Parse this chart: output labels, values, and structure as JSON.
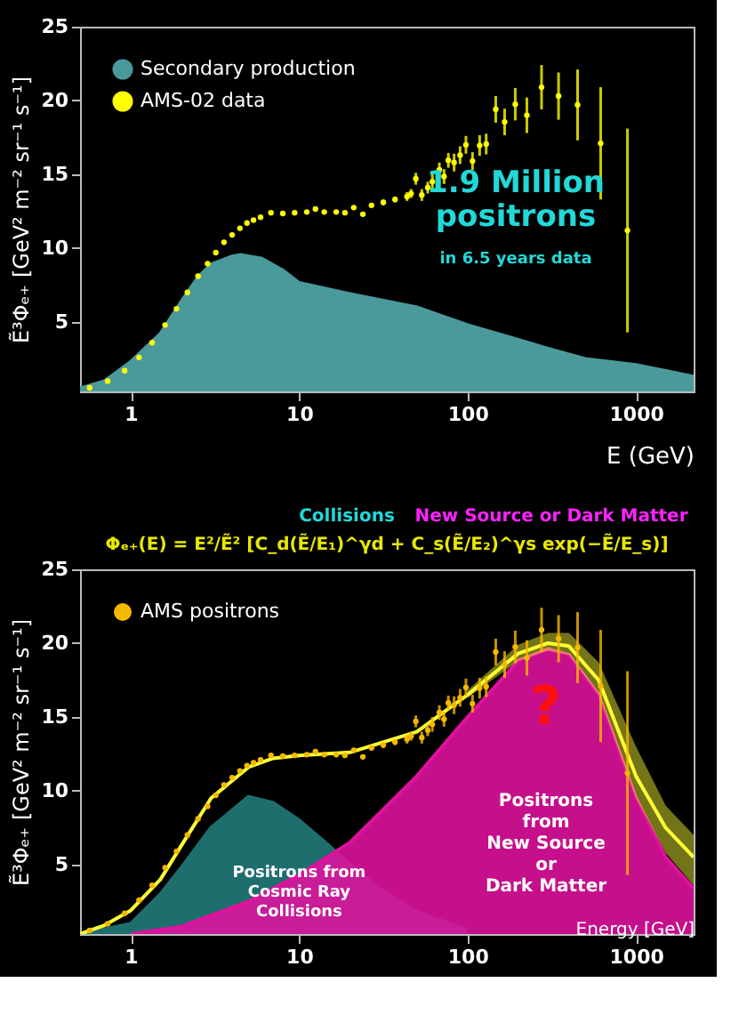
{
  "chart_data": [
    {
      "type": "scatter",
      "xlabel": "E (GeV)",
      "ylabel": "Ẽ³Φₑ₊ [GeV² m⁻² sr⁻¹ s⁻¹]",
      "log": "x",
      "xlim": [
        0.5,
        2200
      ],
      "xticks": [
        1,
        10,
        100,
        1000
      ],
      "ylim": [
        0.3,
        25
      ],
      "yticks": [
        5,
        10,
        15,
        20,
        25
      ],
      "grid": false,
      "legend": "top left",
      "annotations": [
        "1.9 Million\npositrons",
        "in 6.5 years data"
      ],
      "series": [
        {
          "name": "Secondary production",
          "type": "area",
          "color": "#4a9a9c",
          "x": [
            0.5,
            0.7,
            1,
            1.5,
            2,
            2.5,
            3,
            4,
            4.5,
            6,
            8,
            10,
            20,
            50,
            100,
            200,
            300,
            500,
            1000,
            2200
          ],
          "values": [
            0.5,
            1.0,
            2.3,
            4.2,
            6.4,
            8.0,
            8.9,
            9.45,
            9.55,
            9.3,
            8.5,
            7.65,
            6.9,
            6.0,
            4.8,
            3.8,
            3.2,
            2.5,
            2.1,
            1.3
          ]
        },
        {
          "name": "AMS-02 data",
          "color": "#ffff00",
          "x": [
            0.57,
            0.73,
            0.92,
            1.12,
            1.34,
            1.6,
            1.87,
            2.17,
            2.51,
            2.86,
            3.2,
            3.58,
            4.0,
            4.45,
            4.9,
            5.36,
            5.9,
            6.8,
            8.0,
            9.4,
            11.1,
            12.5,
            14.1,
            16.6,
            18.7,
            21.1,
            23.9,
            26.9,
            31.6,
            37.1,
            43.7,
            46.2,
            49.3,
            53.5,
            58,
            61.8,
            68,
            72.5,
            76.9,
            83.2,
            90.3,
            97.8,
            107,
            118,
            129,
            147,
            166,
            192,
            225,
            275,
            347,
            450,
            617,
            890
          ],
          "values": [
            0.54,
            1.0,
            1.7,
            2.6,
            3.6,
            4.8,
            5.9,
            7.0,
            8.1,
            8.95,
            9.7,
            10.4,
            10.9,
            11.35,
            11.7,
            11.9,
            12.1,
            12.4,
            12.35,
            12.4,
            12.45,
            12.65,
            12.45,
            12.45,
            12.4,
            12.75,
            12.3,
            12.9,
            13.1,
            13.3,
            13.5,
            13.7,
            14.7,
            13.6,
            14.1,
            14.5,
            15.3,
            14.85,
            15.95,
            15.8,
            16.3,
            17.0,
            15.9,
            16.95,
            17.05,
            19.4,
            18.55,
            19.75,
            19.0,
            20.9,
            20.3,
            19.7,
            17.1,
            11.2
          ],
          "errors": [
            null,
            null,
            null,
            null,
            null,
            null,
            null,
            null,
            null,
            null,
            null,
            null,
            null,
            null,
            null,
            null,
            null,
            null,
            null,
            null,
            null,
            null,
            null,
            null,
            null,
            null,
            null,
            null,
            0.2,
            0.2,
            0.3,
            0.3,
            0.4,
            0.4,
            0.4,
            0.5,
            0.5,
            0.5,
            0.5,
            0.6,
            0.6,
            0.6,
            0.6,
            0.7,
            0.7,
            0.9,
            0.9,
            1.1,
            1.2,
            1.5,
            1.6,
            2.4,
            3.8,
            6.9
          ]
        }
      ]
    },
    {
      "type": "scatter",
      "title": "Φₑ₊(E) = E²/Ẽ² [C_d(Ẽ/E₁)^γd + C_s(Ẽ/E₂)^γs exp(−Ẽ/E_s)]",
      "xlabel": "Energy [GeV]",
      "ylabel": "Ẽ³Φₑ₊ [GeV² m⁻² sr⁻¹ s⁻¹]",
      "log": "x",
      "xlim": [
        0.5,
        2200
      ],
      "xticks": [
        1,
        10,
        100,
        1000
      ],
      "ylim": [
        0.3,
        25
      ],
      "yticks": [
        5,
        10,
        15,
        20,
        25
      ],
      "grid": false,
      "legend": "top left",
      "annotations": [
        "Collisions",
        "New Source or Dark Matter",
        {
          "text": "Positrons from\nCosmic Ray\nCollisions",
          "x": 10,
          "y": 4.5
        },
        "?",
        "Positrons\nfrom\nNew Source\nor\nDark Matter"
      ],
      "series": [
        {
          "type": "area",
          "color": "#1f6e6e",
          "x": [
            0.5,
            1,
            1.5,
            2,
            3,
            5,
            7,
            10,
            15,
            20,
            30,
            50,
            100
          ],
          "values": [
            0.3,
            1.0,
            3.0,
            4.8,
            7.5,
            9.6,
            9.2,
            8.0,
            6.3,
            5.0,
            3.4,
            1.8,
            0.6
          ]
        },
        {
          "type": "area",
          "color": "#e0119e",
          "x": [
            1,
            2,
            5,
            10,
            20,
            50,
            100,
            200,
            300,
            400,
            600,
            1000,
            1500,
            2200
          ],
          "values": [
            0.3,
            0.8,
            2.5,
            4.3,
            6.5,
            11.0,
            15.0,
            18.8,
            19.6,
            19.2,
            16.5,
            9.5,
            5.5,
            3.4
          ]
        },
        {
          "type": "line",
          "color": "#ffff33",
          "x": [
            0.5,
            0.7,
            1,
            1.5,
            2,
            3,
            5,
            7,
            10,
            20,
            50,
            100,
            200,
            300,
            400,
            600,
            1000,
            1500,
            2200
          ],
          "values": [
            0.3,
            0.9,
            1.9,
            4.0,
            6.3,
            9.5,
            11.6,
            12.2,
            12.4,
            12.6,
            14.0,
            16.5,
            19.3,
            20.0,
            19.8,
            17.5,
            11.0,
            7.5,
            5.5
          ],
          "lower": [
            null,
            null,
            null,
            null,
            null,
            null,
            null,
            null,
            null,
            null,
            null,
            16.3,
            18.8,
            19.5,
            19.2,
            16.5,
            9.5,
            5.8,
            3.6
          ],
          "upper": [
            null,
            null,
            null,
            null,
            null,
            null,
            null,
            null,
            null,
            null,
            null,
            16.8,
            19.9,
            20.7,
            20.7,
            18.7,
            13.0,
            9.0,
            7.0
          ]
        },
        {
          "name": "AMS positrons",
          "color": "#f5b800",
          "x": [
            0.57,
            0.73,
            0.92,
            1.12,
            1.34,
            1.6,
            1.87,
            2.17,
            2.51,
            2.86,
            3.2,
            3.58,
            4.0,
            4.45,
            4.9,
            5.36,
            5.9,
            6.8,
            8.0,
            9.4,
            11.1,
            12.5,
            14.1,
            16.6,
            18.7,
            21.1,
            23.9,
            26.9,
            31.6,
            37.1,
            43.7,
            46.2,
            49.3,
            53.5,
            58,
            61.8,
            68,
            72.5,
            76.9,
            83.2,
            90.3,
            97.8,
            107,
            118,
            129,
            147,
            166,
            192,
            225,
            275,
            347,
            450,
            617,
            890
          ],
          "values": [
            0.54,
            1.0,
            1.7,
            2.6,
            3.6,
            4.8,
            5.9,
            7.0,
            8.1,
            8.95,
            9.7,
            10.4,
            10.9,
            11.35,
            11.7,
            11.9,
            12.1,
            12.4,
            12.35,
            12.4,
            12.45,
            12.65,
            12.45,
            12.45,
            12.4,
            12.75,
            12.3,
            12.9,
            13.1,
            13.3,
            13.5,
            13.7,
            14.7,
            13.6,
            14.1,
            14.5,
            15.3,
            14.85,
            15.95,
            15.8,
            16.3,
            17.0,
            15.9,
            16.95,
            17.05,
            19.4,
            18.55,
            19.75,
            19.0,
            20.9,
            20.3,
            19.7,
            17.1,
            11.2
          ],
          "errors": [
            null,
            null,
            null,
            null,
            null,
            null,
            null,
            null,
            null,
            null,
            null,
            null,
            null,
            null,
            null,
            null,
            null,
            null,
            null,
            null,
            null,
            null,
            null,
            null,
            null,
            null,
            null,
            null,
            0.2,
            0.2,
            0.3,
            0.3,
            0.4,
            0.4,
            0.4,
            0.5,
            0.5,
            0.5,
            0.5,
            0.6,
            0.6,
            0.6,
            0.6,
            0.7,
            0.7,
            0.9,
            0.9,
            1.1,
            1.2,
            1.5,
            1.6,
            2.4,
            3.8,
            6.9
          ]
        }
      ]
    }
  ]
}
